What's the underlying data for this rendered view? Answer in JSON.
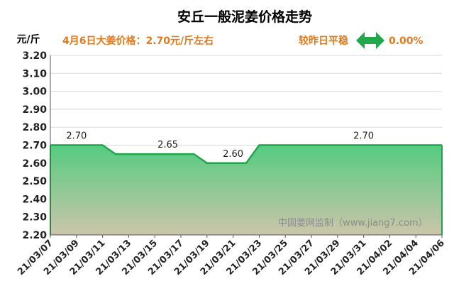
{
  "chart_data": {
    "type": "area",
    "title": "安丘一般泥姜价格走势",
    "ylabel": "元/斤",
    "xlabel": "",
    "price_note": "4月6日大姜价格：2.70元/斤左右",
    "compare_label": "较昨日平稳",
    "compare_value": "0.00%",
    "watermark": "中国姜网监制（www.jiang7.com）",
    "ylim": [
      2.2,
      3.2
    ],
    "ytick_step": 0.1,
    "grid": "horizontal",
    "x_ticks": [
      "21/03/07",
      "21/03/09",
      "21/03/11",
      "21/03/13",
      "21/03/15",
      "21/03/17",
      "21/03/19",
      "21/03/21",
      "21/03/23",
      "21/03/25",
      "21/03/27",
      "21/03/29",
      "21/03/31",
      "21/04/02",
      "21/04/04",
      "21/04/06"
    ],
    "x": [
      "21/03/07",
      "21/03/08",
      "21/03/09",
      "21/03/10",
      "21/03/11",
      "21/03/12",
      "21/03/13",
      "21/03/14",
      "21/03/15",
      "21/03/16",
      "21/03/17",
      "21/03/18",
      "21/03/19",
      "21/03/20",
      "21/03/21",
      "21/03/22",
      "21/03/23",
      "21/03/24",
      "21/03/25",
      "21/03/26",
      "21/03/27",
      "21/03/28",
      "21/03/29",
      "21/03/30",
      "21/03/31",
      "21/04/01",
      "21/04/02",
      "21/04/03",
      "21/04/04",
      "21/04/05",
      "21/04/06"
    ],
    "series": [
      {
        "values": [
          2.7,
          2.7,
          2.7,
          2.7,
          2.7,
          2.65,
          2.65,
          2.65,
          2.65,
          2.65,
          2.65,
          2.65,
          2.6,
          2.6,
          2.6,
          2.6,
          2.7,
          2.7,
          2.7,
          2.7,
          2.7,
          2.7,
          2.7,
          2.7,
          2.7,
          2.7,
          2.7,
          2.7,
          2.7,
          2.7,
          2.7
        ]
      }
    ],
    "data_labels": [
      {
        "x": "21/03/09",
        "text": "2.70"
      },
      {
        "x": "21/03/16",
        "text": "2.65"
      },
      {
        "x": "21/03/21",
        "text": "2.60"
      },
      {
        "x": "21/03/31",
        "text": "2.70"
      }
    ],
    "colors": {
      "line": "#1fa64a",
      "fill_top": "#4cc97a",
      "fill_bottom": "#c9c2a6",
      "title": "#000000",
      "note": "#e07b20",
      "arrow": "#22a84a",
      "watermark": "#8c8c8c",
      "grid": "#d8d8d8"
    },
    "icons": {
      "compare": "double-arrow-icon"
    }
  }
}
